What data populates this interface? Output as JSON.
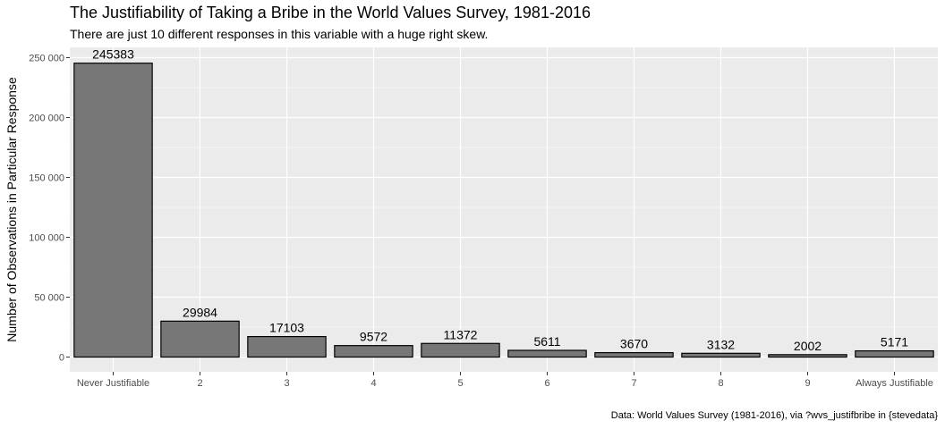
{
  "title": "The Justifiability of Taking a Bribe in the World Values Survey, 1981-2016",
  "subtitle": "There are just 10 different responses in this variable with a huge right skew.",
  "caption": "Data: World Values Survey (1981-2016), via ?wvs_justifbribe in {stevedata}",
  "colors": {
    "panel": "#EBEBEB",
    "grid": "#FFFFFF",
    "bar_fill": "#777777",
    "bar_stroke": "#000000",
    "tick_text": "#4D4D4D"
  },
  "chart_data": {
    "type": "bar",
    "categories": [
      "Never Justifiable",
      "2",
      "3",
      "4",
      "5",
      "6",
      "7",
      "8",
      "9",
      "Always Justifiable"
    ],
    "values": [
      245383,
      29984,
      17103,
      9572,
      11372,
      5611,
      3670,
      3132,
      2002,
      5171
    ],
    "data_labels": [
      "245383",
      "29984",
      "17103",
      "9572",
      "11372",
      "5611",
      "3670",
      "3132",
      "2002",
      "5171"
    ],
    "xlabel": "",
    "ylabel": "Number of Observations in Particular Response",
    "ylim": [
      -12270,
      257650
    ],
    "yticks": [
      0,
      50000,
      100000,
      150000,
      200000,
      250000
    ],
    "ytick_labels": [
      "0",
      "50 000",
      "100 000",
      "150 000",
      "200 000",
      "250 000"
    ],
    "grid": true,
    "legend": "none"
  }
}
